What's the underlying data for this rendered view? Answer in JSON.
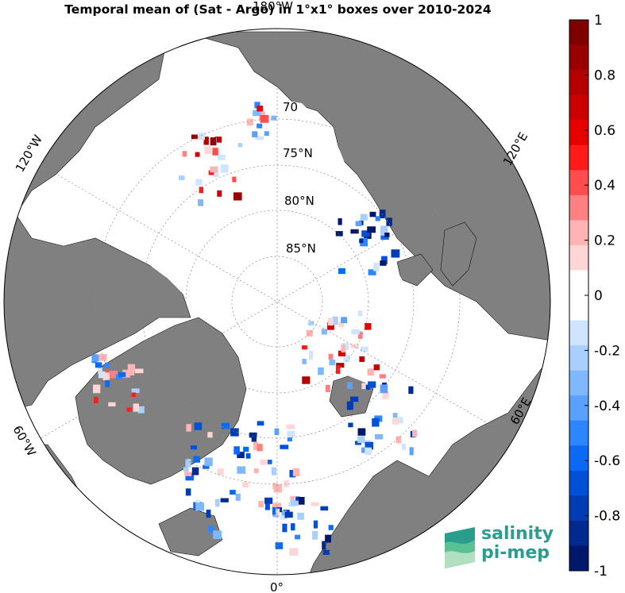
{
  "title": "Temporal mean of (Sat - Argo) in 1°x1° boxes over 2010-2024",
  "map": {
    "projection": "north-polar-stereographic",
    "land_color": "#808080",
    "ocean_color": "#ffffff",
    "longitude_labels": [
      {
        "id": "lon-180",
        "text": "180°W"
      },
      {
        "id": "lon-120w",
        "text": "120°W"
      },
      {
        "id": "lon-120e",
        "text": "120°E"
      },
      {
        "id": "lon-60w",
        "text": "60°W"
      },
      {
        "id": "lon-60e",
        "text": "60°E"
      },
      {
        "id": "lon-0",
        "text": "0°"
      }
    ],
    "latitude_labels": [
      {
        "id": "lat-70",
        "text": "70"
      },
      {
        "id": "lat-75",
        "text": "75°N"
      },
      {
        "id": "lat-80",
        "text": "80°N"
      },
      {
        "id": "lat-85",
        "text": "85°N"
      }
    ]
  },
  "colorbar": {
    "min": -1,
    "max": 1,
    "ticks": [
      "1",
      "0.8",
      "0.6",
      "0.4",
      "0.2",
      "0",
      "-0.2",
      "-0.4",
      "-0.6",
      "-0.8",
      "-1"
    ],
    "colors": [
      "#7f0000",
      "#9a0000",
      "#b40000",
      "#cd0000",
      "#e60000",
      "#ff1a1a",
      "#ff4d4d",
      "#ff8080",
      "#ffb3b3",
      "#ffd6d6",
      "#ffffff",
      "#ffffff",
      "#cfe4ff",
      "#a8cfff",
      "#80b8ff",
      "#5aa0ff",
      "#2e86ff",
      "#0a6af5",
      "#0050d8",
      "#003cb4",
      "#002a90",
      "#00186b"
    ]
  },
  "logo": {
    "line1": "salinity",
    "line2": "pi-mep",
    "color": "#2a9d8f"
  }
}
